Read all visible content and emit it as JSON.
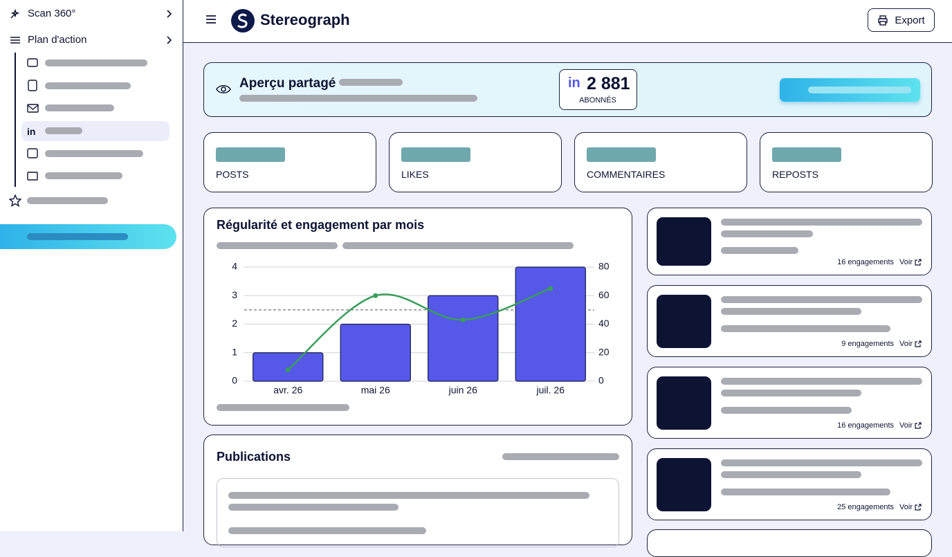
{
  "sidebar": {
    "items": [
      "Scan 360°",
      "Plan d'action"
    ]
  },
  "header": {
    "brand": "Stereograph",
    "export": "Export"
  },
  "overview": {
    "title": "Aperçu partagé",
    "followers": "2 881",
    "followers_label": "ABONNÉS"
  },
  "stats": [
    "POSTS",
    "LIKES",
    "COMMENTAIRES",
    "REPOSTS"
  ],
  "chart_data": {
    "type": "bar",
    "title": "Régularité et engagement par mois",
    "categories": [
      "avr. 26",
      "mai 26",
      "juin 26",
      "juil. 26"
    ],
    "series": [
      {
        "color": "#5558e8",
        "values": [
          1,
          2,
          3,
          4
        ]
      },
      {
        "color": "#3a9e5a",
        "values": [
          8,
          60,
          43,
          65
        ],
        "axis": "y2"
      }
    ],
    "reference_y": 2.5,
    "ylim": [
      0,
      4
    ],
    "yticks": [
      0,
      1,
      2,
      3,
      4
    ],
    "y2lim": [
      0,
      80
    ],
    "y2ticks": [
      0,
      20,
      40,
      60,
      80
    ],
    "grid": true
  },
  "publications": {
    "title": "Publications"
  },
  "posts": {
    "view_label": "Voir",
    "engagements": [
      "16 engagements",
      "9 engagements",
      "16 engagements",
      "25 engagements"
    ]
  }
}
